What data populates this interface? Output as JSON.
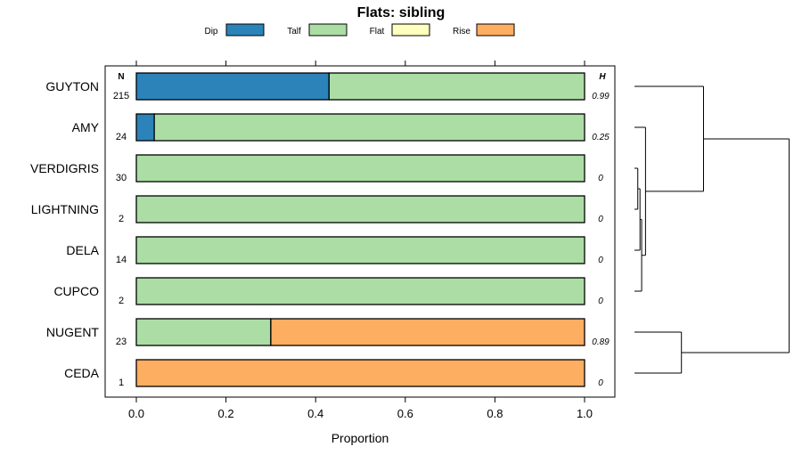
{
  "chart_data": {
    "type": "bar",
    "orientation": "horizontal",
    "stacked": true,
    "title": "Flats: sibling",
    "xlabel": "Proportion",
    "xlim": [
      0,
      1
    ],
    "xticks": [
      "0.0",
      "0.2",
      "0.4",
      "0.6",
      "0.8",
      "1.0"
    ],
    "legend_position": "top",
    "n_header": "N",
    "h_header": "H",
    "legend": [
      {
        "name": "Dip",
        "color": "#2b83ba"
      },
      {
        "name": "Talf",
        "color": "#abdda4"
      },
      {
        "name": "Flat",
        "color": "#ffffbf"
      },
      {
        "name": "Rise",
        "color": "#fdae61"
      }
    ],
    "categories": [
      "GUYTON",
      "AMY",
      "VERDIGRIS",
      "LIGHTNING",
      "DELA",
      "CUPCO",
      "NUGENT",
      "CEDA"
    ],
    "n": [
      "215",
      "24",
      "30",
      "2",
      "14",
      "2",
      "23",
      "1"
    ],
    "h": [
      "0.99",
      "0.25",
      "0",
      "0",
      "0",
      "0",
      "0.89",
      "0"
    ],
    "series": [
      {
        "name": "Dip",
        "values": [
          0.43,
          0.04,
          0,
          0,
          0,
          0,
          0,
          0
        ]
      },
      {
        "name": "Talf",
        "values": [
          0.57,
          0.96,
          1,
          1,
          1,
          1,
          0.3,
          0
        ]
      },
      {
        "name": "Flat",
        "values": [
          0,
          0,
          0,
          0,
          0,
          0,
          0,
          0
        ]
      },
      {
        "name": "Rise",
        "values": [
          0,
          0,
          0,
          0,
          0,
          0,
          0.7,
          1
        ]
      }
    ],
    "dendrogram": {
      "note": "hierarchical clustering of categories",
      "merges": [
        {
          "a": "VERDIGRIS",
          "b": "LIGHTNING",
          "height": 0.06
        },
        {
          "a": "m0",
          "b": "DELA",
          "height": 0.1
        },
        {
          "a": "m1",
          "b": "CUPCO",
          "height": 0.13
        },
        {
          "a": "AMY",
          "b": "m2",
          "height": 0.2
        },
        {
          "a": "NUGENT",
          "b": "CEDA",
          "height": 0.85
        },
        {
          "a": "GUYTON",
          "b": "m3",
          "height": 1.25
        },
        {
          "a": "m5",
          "b": "m4",
          "height": 2.8
        }
      ]
    }
  }
}
